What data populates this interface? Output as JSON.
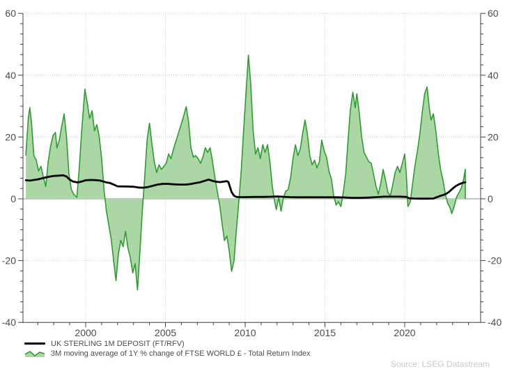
{
  "legend": {
    "items": [
      {
        "label": "UK STERLING 1M DEPOSIT (FT/RFV)",
        "swatch": "line",
        "color": "#000000"
      },
      {
        "label": "3M moving average of 1Y % change of FTSE WORLD £ - Total Return Index",
        "swatch": "area",
        "color": "#2e9b33",
        "fill": "#aad7a3"
      }
    ]
  },
  "source_note": "Source: LSEG Datastream",
  "chart_data": {
    "type": "area",
    "title": "",
    "xlabel": "",
    "ylabel": "",
    "x_range": [
      1996.07,
      2024.76
    ],
    "y_range": [
      -40,
      60
    ],
    "y_major_ticks": [
      60,
      40,
      20,
      0,
      -20,
      -40
    ],
    "y_tick_labels": [
      "60",
      "40",
      "20",
      "0",
      "-20",
      "-40"
    ],
    "y_minor_subdivisions": 6,
    "x_major_ticks": [
      2000,
      2005,
      2010,
      2015,
      2020
    ],
    "x_tick_labels": [
      "2000",
      "2005",
      "2010",
      "2015",
      "2020"
    ],
    "x_minor_interval": 1,
    "grid": {
      "horizontal": "dotted",
      "vertical": "dotted",
      "zero_line": "solid",
      "grid_color": "#c9c9c9",
      "zero_color": "#8c8c8c"
    },
    "axis_color": "#404040",
    "legend_position": "bottom-left",
    "series": [
      {
        "name": "3M moving average of 1Y % change of FTSE WORLD £ - Total Return Index",
        "type": "area",
        "stroke": "#2e9b33",
        "fill": "#aad7a3",
        "baseline": 0,
        "points": [
          [
            1996.25,
            14
          ],
          [
            1996.4,
            26
          ],
          [
            1996.5,
            29.5
          ],
          [
            1996.6,
            25
          ],
          [
            1996.75,
            14
          ],
          [
            1996.9,
            12.5
          ],
          [
            1997.05,
            9
          ],
          [
            1997.2,
            10.5
          ],
          [
            1997.35,
            7
          ],
          [
            1997.5,
            4
          ],
          [
            1997.65,
            12
          ],
          [
            1997.8,
            17
          ],
          [
            1997.95,
            20.5
          ],
          [
            1998.1,
            21.5
          ],
          [
            1998.2,
            16.5
          ],
          [
            1998.35,
            19
          ],
          [
            1998.5,
            23.5
          ],
          [
            1998.65,
            27.5
          ],
          [
            1998.8,
            20
          ],
          [
            1998.95,
            8
          ],
          [
            1999.1,
            3
          ],
          [
            1999.25,
            1.5
          ],
          [
            1999.45,
            0.5
          ],
          [
            1999.6,
            10
          ],
          [
            1999.75,
            22
          ],
          [
            1999.95,
            35.5
          ],
          [
            2000.1,
            31
          ],
          [
            2000.25,
            26
          ],
          [
            2000.4,
            28.5
          ],
          [
            2000.55,
            22
          ],
          [
            2000.7,
            24
          ],
          [
            2000.85,
            20
          ],
          [
            2001.0,
            13
          ],
          [
            2001.15,
            3
          ],
          [
            2001.3,
            -4
          ],
          [
            2001.45,
            -8.5
          ],
          [
            2001.6,
            -13
          ],
          [
            2001.75,
            -20
          ],
          [
            2001.9,
            -26.5
          ],
          [
            2002.05,
            -18
          ],
          [
            2002.2,
            -13.5
          ],
          [
            2002.35,
            -15.5
          ],
          [
            2002.5,
            -10.5
          ],
          [
            2002.65,
            -16
          ],
          [
            2002.8,
            -19
          ],
          [
            2002.95,
            -24
          ],
          [
            2003.1,
            -21
          ],
          [
            2003.25,
            -29.5
          ],
          [
            2003.4,
            -17
          ],
          [
            2003.55,
            -4
          ],
          [
            2003.7,
            7
          ],
          [
            2003.85,
            19
          ],
          [
            2004.0,
            24.5
          ],
          [
            2004.15,
            18
          ],
          [
            2004.3,
            12
          ],
          [
            2004.45,
            8.5
          ],
          [
            2004.6,
            11
          ],
          [
            2004.75,
            9.5
          ],
          [
            2004.9,
            10.5
          ],
          [
            2005.05,
            11.5
          ],
          [
            2005.2,
            14.5
          ],
          [
            2005.35,
            13
          ],
          [
            2005.5,
            16
          ],
          [
            2005.65,
            18.5
          ],
          [
            2005.8,
            21
          ],
          [
            2005.95,
            23.5
          ],
          [
            2006.1,
            26
          ],
          [
            2006.3,
            29.8
          ],
          [
            2006.45,
            25
          ],
          [
            2006.6,
            16.5
          ],
          [
            2006.75,
            13.5
          ],
          [
            2006.9,
            14
          ],
          [
            2007.05,
            13
          ],
          [
            2007.2,
            11.5
          ],
          [
            2007.35,
            13.5
          ],
          [
            2007.5,
            16.5
          ],
          [
            2007.65,
            15
          ],
          [
            2007.8,
            16.5
          ],
          [
            2007.95,
            12
          ],
          [
            2008.1,
            7
          ],
          [
            2008.25,
            2.5
          ],
          [
            2008.4,
            -2
          ],
          [
            2008.55,
            -8
          ],
          [
            2008.7,
            -13.5
          ],
          [
            2008.85,
            -12
          ],
          [
            2009.0,
            -17
          ],
          [
            2009.15,
            -23.5
          ],
          [
            2009.3,
            -20
          ],
          [
            2009.45,
            -10
          ],
          [
            2009.6,
            -1
          ],
          [
            2009.75,
            9
          ],
          [
            2009.9,
            22
          ],
          [
            2010.05,
            34
          ],
          [
            2010.2,
            46.5
          ],
          [
            2010.35,
            37
          ],
          [
            2010.5,
            22
          ],
          [
            2010.65,
            14.5
          ],
          [
            2010.8,
            16.5
          ],
          [
            2010.95,
            13
          ],
          [
            2011.1,
            17.5
          ],
          [
            2011.25,
            15
          ],
          [
            2011.4,
            17.5
          ],
          [
            2011.55,
            12
          ],
          [
            2011.7,
            4
          ],
          [
            2011.85,
            -1
          ],
          [
            2011.95,
            -3.5
          ],
          [
            2012.1,
            0.5
          ],
          [
            2012.25,
            -4
          ],
          [
            2012.4,
            0.5
          ],
          [
            2012.55,
            2.5
          ],
          [
            2012.7,
            3
          ],
          [
            2012.85,
            7
          ],
          [
            2013.0,
            13
          ],
          [
            2013.15,
            17.5
          ],
          [
            2013.3,
            14
          ],
          [
            2013.45,
            16
          ],
          [
            2013.6,
            21
          ],
          [
            2013.75,
            25.5
          ],
          [
            2013.9,
            21
          ],
          [
            2014.05,
            14
          ],
          [
            2014.2,
            11
          ],
          [
            2014.35,
            12.5
          ],
          [
            2014.5,
            10
          ],
          [
            2014.65,
            12
          ],
          [
            2014.8,
            19
          ],
          [
            2014.95,
            15.5
          ],
          [
            2015.1,
            13.5
          ],
          [
            2015.25,
            9
          ],
          [
            2015.4,
            6.5
          ],
          [
            2015.55,
            1
          ],
          [
            2015.7,
            -2
          ],
          [
            2015.85,
            -1
          ],
          [
            2016.0,
            -2.5
          ],
          [
            2016.15,
            2
          ],
          [
            2016.3,
            8
          ],
          [
            2016.45,
            19
          ],
          [
            2016.6,
            29
          ],
          [
            2016.75,
            34.5
          ],
          [
            2016.9,
            29.5
          ],
          [
            2017.0,
            34
          ],
          [
            2017.15,
            28
          ],
          [
            2017.3,
            20
          ],
          [
            2017.45,
            15
          ],
          [
            2017.6,
            13.5
          ],
          [
            2017.75,
            12
          ],
          [
            2017.9,
            11.5
          ],
          [
            2018.05,
            8
          ],
          [
            2018.2,
            4
          ],
          [
            2018.35,
            1.5
          ],
          [
            2018.5,
            5
          ],
          [
            2018.65,
            9.5
          ],
          [
            2018.8,
            6
          ],
          [
            2018.95,
            2
          ],
          [
            2019.1,
            1
          ],
          [
            2019.25,
            4.5
          ],
          [
            2019.4,
            8.5
          ],
          [
            2019.55,
            10.5
          ],
          [
            2019.7,
            8.5
          ],
          [
            2019.85,
            11.5
          ],
          [
            2020.0,
            14.5
          ],
          [
            2020.1,
            8
          ],
          [
            2020.2,
            -2.5
          ],
          [
            2020.35,
            -1
          ],
          [
            2020.5,
            5
          ],
          [
            2020.65,
            11
          ],
          [
            2020.8,
            15.5
          ],
          [
            2020.95,
            21
          ],
          [
            2021.1,
            28
          ],
          [
            2021.25,
            34
          ],
          [
            2021.4,
            36.2
          ],
          [
            2021.55,
            29
          ],
          [
            2021.65,
            25.5
          ],
          [
            2021.8,
            27.5
          ],
          [
            2021.95,
            22
          ],
          [
            2022.1,
            15
          ],
          [
            2022.25,
            9.5
          ],
          [
            2022.4,
            6
          ],
          [
            2022.55,
            1.5
          ],
          [
            2022.7,
            -1.5
          ],
          [
            2022.85,
            -3
          ],
          [
            2022.95,
            -4.8
          ],
          [
            2023.1,
            -2.5
          ],
          [
            2023.25,
            0.5
          ],
          [
            2023.4,
            2
          ],
          [
            2023.55,
            3.5
          ],
          [
            2023.7,
            6.5
          ],
          [
            2023.8,
            9.5
          ]
        ]
      },
      {
        "name": "UK STERLING 1M DEPOSIT (FT/RFV)",
        "type": "line",
        "stroke": "#000000",
        "width": 2.8,
        "points": [
          [
            1996.25,
            6.0
          ],
          [
            1996.5,
            5.9
          ],
          [
            1996.75,
            6.1
          ],
          [
            1997.0,
            6.3
          ],
          [
            1997.25,
            6.6
          ],
          [
            1997.5,
            6.9
          ],
          [
            1997.75,
            7.2
          ],
          [
            1998.0,
            7.4
          ],
          [
            1998.3,
            7.5
          ],
          [
            1998.6,
            7.6
          ],
          [
            1998.8,
            7.2
          ],
          [
            1999.0,
            6.2
          ],
          [
            1999.2,
            5.6
          ],
          [
            1999.5,
            5.3
          ],
          [
            1999.75,
            5.6
          ],
          [
            2000.0,
            6.0
          ],
          [
            2000.3,
            6.1
          ],
          [
            2000.6,
            6.05
          ],
          [
            2000.9,
            5.9
          ],
          [
            2001.1,
            5.6
          ],
          [
            2001.3,
            5.3
          ],
          [
            2001.5,
            5.15
          ],
          [
            2001.75,
            4.6
          ],
          [
            2002.0,
            4.05
          ],
          [
            2002.5,
            4.0
          ],
          [
            2003.0,
            3.9
          ],
          [
            2003.3,
            3.65
          ],
          [
            2003.6,
            3.6
          ],
          [
            2003.9,
            3.8
          ],
          [
            2004.2,
            4.2
          ],
          [
            2004.5,
            4.6
          ],
          [
            2004.8,
            4.8
          ],
          [
            2005.1,
            4.85
          ],
          [
            2005.5,
            4.7
          ],
          [
            2005.9,
            4.6
          ],
          [
            2006.3,
            4.6
          ],
          [
            2006.6,
            4.8
          ],
          [
            2006.9,
            5.1
          ],
          [
            2007.2,
            5.4
          ],
          [
            2007.5,
            5.9
          ],
          [
            2007.7,
            6.2
          ],
          [
            2007.9,
            5.9
          ],
          [
            2008.1,
            5.6
          ],
          [
            2008.4,
            5.4
          ],
          [
            2008.7,
            5.6
          ],
          [
            2008.85,
            5.7
          ],
          [
            2008.95,
            5.4
          ],
          [
            2009.05,
            3.8
          ],
          [
            2009.15,
            2.2
          ],
          [
            2009.3,
            1.0
          ],
          [
            2009.45,
            0.6
          ],
          [
            2009.7,
            0.55
          ],
          [
            2010.0,
            0.55
          ],
          [
            2010.5,
            0.6
          ],
          [
            2011.0,
            0.6
          ],
          [
            2011.5,
            0.65
          ],
          [
            2012.0,
            0.75
          ],
          [
            2012.4,
            0.65
          ],
          [
            2012.8,
            0.55
          ],
          [
            2013.2,
            0.5
          ],
          [
            2013.8,
            0.5
          ],
          [
            2014.4,
            0.5
          ],
          [
            2015.0,
            0.5
          ],
          [
            2015.6,
            0.5
          ],
          [
            2016.2,
            0.45
          ],
          [
            2016.7,
            0.3
          ],
          [
            2017.2,
            0.3
          ],
          [
            2017.8,
            0.4
          ],
          [
            2018.2,
            0.55
          ],
          [
            2018.7,
            0.7
          ],
          [
            2019.2,
            0.7
          ],
          [
            2019.7,
            0.7
          ],
          [
            2020.1,
            0.6
          ],
          [
            2020.3,
            0.15
          ],
          [
            2020.6,
            0.08
          ],
          [
            2021.0,
            0.05
          ],
          [
            2021.4,
            0.05
          ],
          [
            2021.8,
            0.1
          ],
          [
            2022.0,
            0.5
          ],
          [
            2022.2,
            0.9
          ],
          [
            2022.4,
            1.2
          ],
          [
            2022.6,
            1.6
          ],
          [
            2022.8,
            2.3
          ],
          [
            2023.0,
            3.3
          ],
          [
            2023.2,
            4.1
          ],
          [
            2023.4,
            4.7
          ],
          [
            2023.6,
            5.1
          ],
          [
            2023.8,
            5.35
          ]
        ]
      }
    ]
  }
}
